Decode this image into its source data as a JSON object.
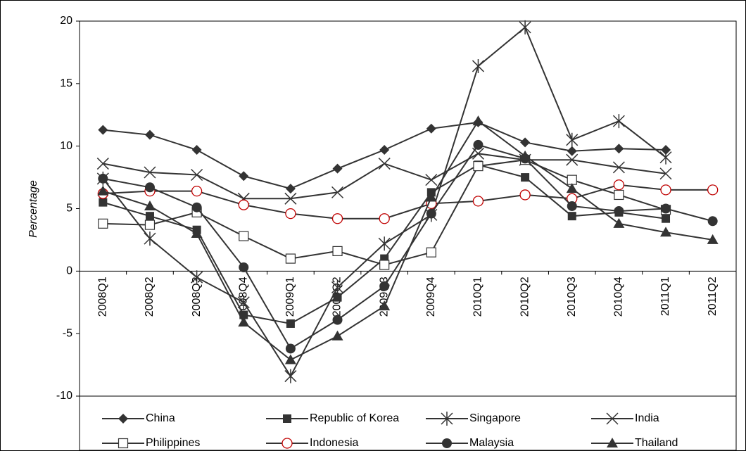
{
  "chart_data": {
    "type": "line",
    "y_label": "Percentage",
    "categories": [
      "2008Q1",
      "2008Q2",
      "2008Q3",
      "2008Q4",
      "2009Q1",
      "2009Q2",
      "2009Q3",
      "2009Q4",
      "2010Q1",
      "2010Q2",
      "2010Q3",
      "2010Q4",
      "2011Q1",
      "2011Q2"
    ],
    "ylim": [
      -10,
      20
    ],
    "yticks": [
      -10,
      -5,
      0,
      5,
      10,
      15,
      20
    ],
    "series": [
      {
        "name": "China",
        "color": "#333333",
        "marker": "diamond",
        "values": [
          11.3,
          10.9,
          9.7,
          7.6,
          6.6,
          8.2,
          9.7,
          11.4,
          11.9,
          10.3,
          9.6,
          9.8,
          9.7,
          null
        ]
      },
      {
        "name": "Republic of Korea",
        "color": "#333333",
        "marker": "square",
        "values": [
          5.5,
          4.4,
          3.3,
          -3.5,
          -4.2,
          -2.1,
          1.0,
          6.3,
          8.5,
          7.5,
          4.4,
          4.7,
          4.2,
          null
        ]
      },
      {
        "name": "Singapore",
        "color": "#333333",
        "marker": "asterisk",
        "values": [
          7.4,
          2.6,
          -0.5,
          -2.5,
          -8.4,
          -1.3,
          2.2,
          4.5,
          16.4,
          19.5,
          10.5,
          12.0,
          9.1,
          null
        ]
      },
      {
        "name": "India",
        "color": "#333333",
        "marker": "cross",
        "values": [
          8.6,
          7.9,
          7.7,
          5.8,
          5.8,
          6.3,
          8.6,
          7.3,
          9.4,
          8.9,
          8.9,
          8.3,
          7.8,
          null
        ]
      },
      {
        "name": "Philippines",
        "color": "#333333",
        "marker": "open-square",
        "values": [
          3.8,
          3.7,
          4.7,
          2.8,
          1.0,
          1.6,
          0.5,
          1.5,
          8.4,
          8.9,
          7.3,
          6.1,
          4.9,
          null
        ]
      },
      {
        "name": "Indonesia",
        "color": "#333333",
        "marker": "open-circle",
        "marker_color": "#c00000",
        "values": [
          6.2,
          6.4,
          6.4,
          5.3,
          4.6,
          4.2,
          4.2,
          5.4,
          5.6,
          6.1,
          5.8,
          6.9,
          6.5,
          6.5
        ]
      },
      {
        "name": "Malaysia",
        "color": "#333333",
        "marker": "circle",
        "values": [
          7.4,
          6.7,
          5.1,
          0.3,
          -6.2,
          -3.9,
          -1.2,
          4.6,
          10.1,
          9.0,
          5.2,
          4.8,
          5.0,
          4.0
        ]
      },
      {
        "name": "Thailand",
        "color": "#333333",
        "marker": "triangle",
        "values": [
          6.4,
          5.2,
          3.0,
          -4.1,
          -7.1,
          -5.2,
          -2.8,
          5.9,
          12.0,
          9.2,
          6.6,
          3.8,
          3.1,
          2.5
        ]
      }
    ]
  }
}
